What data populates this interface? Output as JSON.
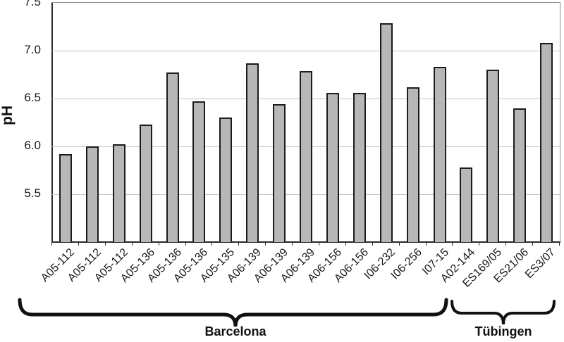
{
  "chart_data": {
    "type": "bar",
    "title": "",
    "xlabel": "",
    "ylabel": "pH",
    "ylim": [
      5.0,
      7.5
    ],
    "yticks": [
      5.5,
      6.0,
      6.5,
      7.0,
      7.5
    ],
    "grid": true,
    "legend": null,
    "categories": [
      "A05-112",
      "A05-112",
      "A05-112",
      "A05-136",
      "A05-136",
      "A05-136",
      "A05-135",
      "A06-139",
      "A06-139",
      "A06-139",
      "A06-156",
      "A06-156",
      "I06-232",
      "I06-256",
      "I07-15",
      "A02-144",
      "ES169/05",
      "ES21/06",
      "ES3/07"
    ],
    "values": [
      5.92,
      6.0,
      6.02,
      6.23,
      6.77,
      6.47,
      6.3,
      6.87,
      6.44,
      6.79,
      6.56,
      6.56,
      7.29,
      6.62,
      6.83,
      5.78,
      6.8,
      6.4,
      7.08
    ],
    "groups": [
      {
        "label": "Barcelona",
        "from": 0,
        "to": 14
      },
      {
        "label": "Tübingen",
        "from": 15,
        "to": 18
      }
    ],
    "colors": {
      "bar_fill": "#b7b7b7",
      "bar_border": "#1c1c1c",
      "gridline": "#c4c4c4",
      "axis": "#2a2a2a",
      "brace": "#111111",
      "text": "#111111"
    }
  }
}
